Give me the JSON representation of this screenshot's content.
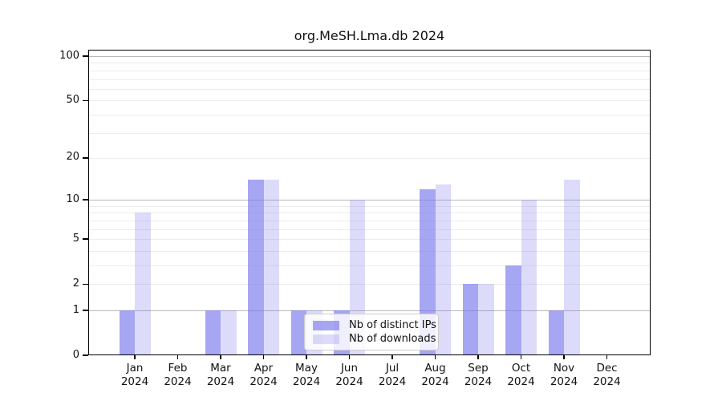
{
  "title": "org.MeSH.Lma.db 2024",
  "legend": {
    "items": [
      {
        "label": "Nb of distinct IPs",
        "color": "rgba(124,124,238,0.68)"
      },
      {
        "label": "Nb of downloads",
        "color": "rgba(124,124,238,0.27)"
      }
    ]
  },
  "colors": {
    "distinct_ips_bar": "rgba(124,124,238,0.68)",
    "downloads_bar": "rgba(124,124,238,0.27)",
    "grid_minor": "#ececec",
    "grid_major": "#b8b8b8",
    "axis": "#000000",
    "text": "#111111"
  },
  "chart_data": {
    "type": "bar",
    "title": "org.MeSH.Lma.db 2024",
    "categories": [
      "Jan 2024",
      "Feb 2024",
      "Mar 2024",
      "Apr 2024",
      "May 2024",
      "Jun 2024",
      "Jul 2024",
      "Aug 2024",
      "Sep 2024",
      "Oct 2024",
      "Nov 2024",
      "Dec 2024"
    ],
    "month_labels": [
      [
        "Jan",
        "2024"
      ],
      [
        "Feb",
        "2024"
      ],
      [
        "Mar",
        "2024"
      ],
      [
        "Apr",
        "2024"
      ],
      [
        "May",
        "2024"
      ],
      [
        "Jun",
        "2024"
      ],
      [
        "Jul",
        "2024"
      ],
      [
        "Aug",
        "2024"
      ],
      [
        "Sep",
        "2024"
      ],
      [
        "Oct",
        "2024"
      ],
      [
        "Nov",
        "2024"
      ],
      [
        "Dec",
        "2024"
      ]
    ],
    "series": [
      {
        "name": "Nb of distinct IPs",
        "values": [
          1,
          0,
          1,
          14,
          1,
          1,
          0,
          12,
          2,
          3,
          1,
          0
        ]
      },
      {
        "name": "Nb of downloads",
        "values": [
          8,
          0,
          1,
          14,
          1,
          10,
          0,
          13,
          2,
          10,
          14,
          0
        ]
      }
    ],
    "yscale": "log1p",
    "yticks": [
      0,
      1,
      2,
      5,
      10,
      20,
      50,
      100
    ],
    "ylim": [
      0,
      100
    ],
    "grid": "horizontal",
    "gridlines_minor": [
      2,
      3,
      4,
      5,
      6,
      7,
      8,
      9,
      20,
      30,
      40,
      50,
      60,
      70,
      80,
      90
    ],
    "gridlines_major": [
      1,
      10,
      100
    ],
    "legend_position": "lower center"
  }
}
